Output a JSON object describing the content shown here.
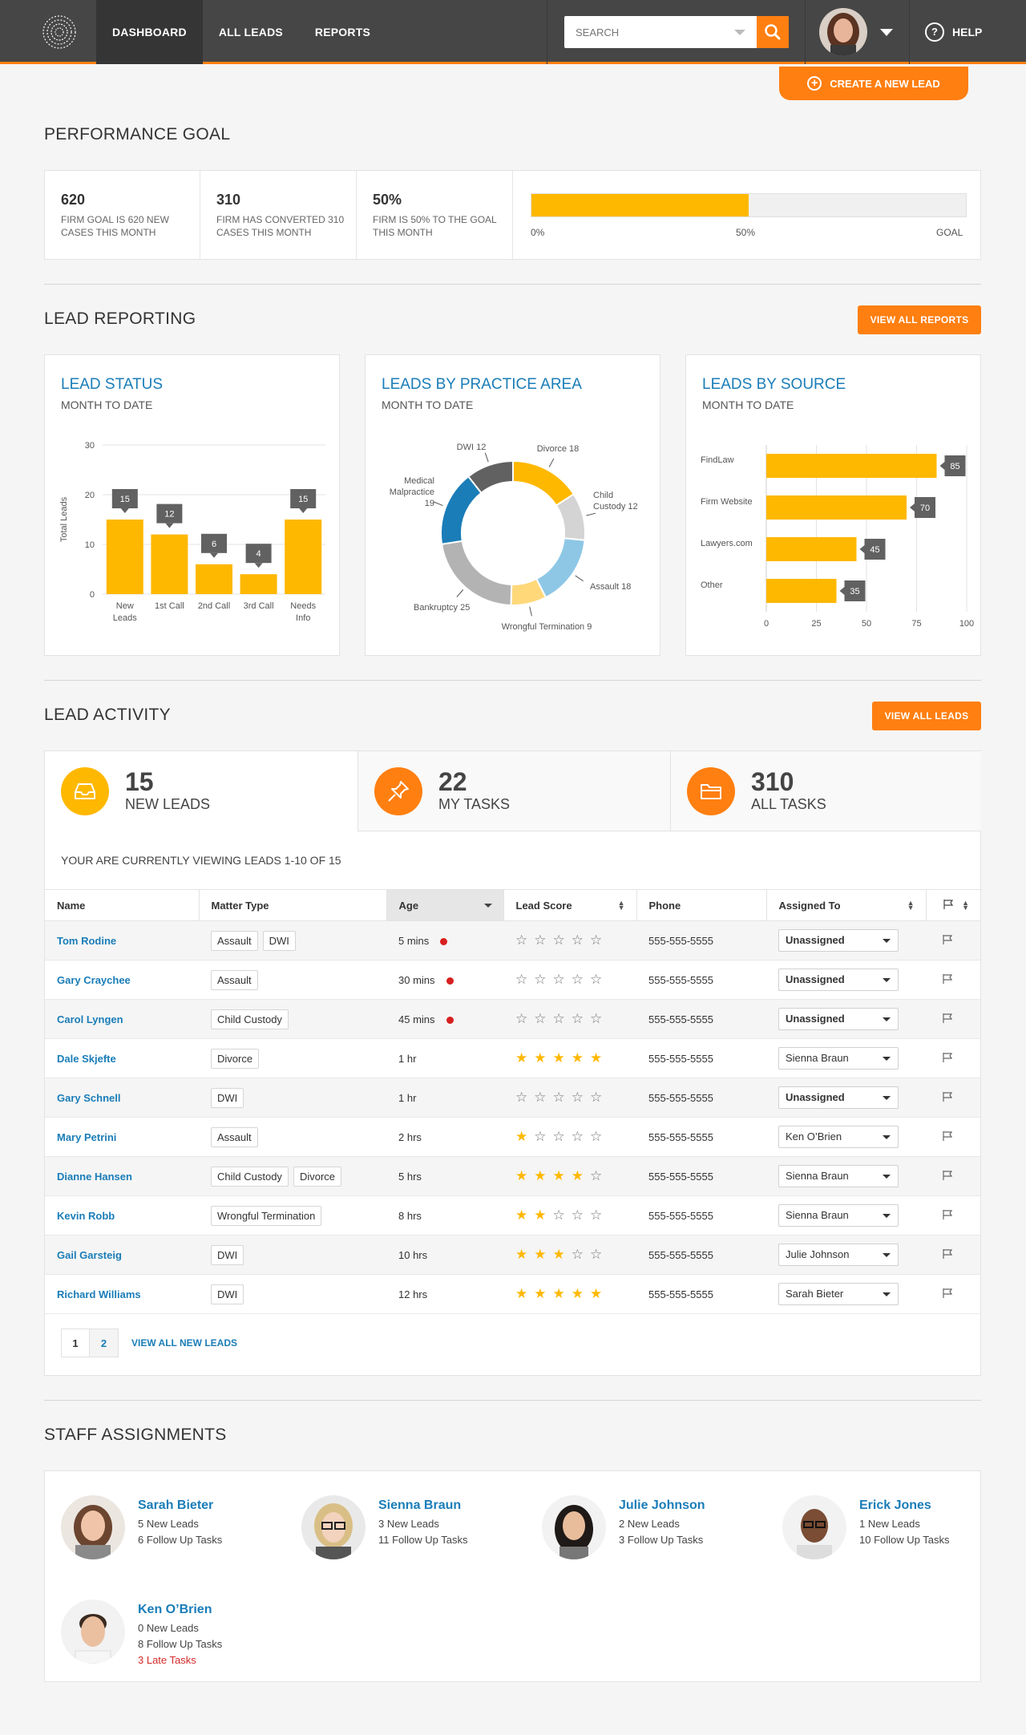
{
  "nav": {
    "items": [
      "DASHBOARD",
      "ALL LEADS",
      "REPORTS"
    ],
    "search_placeholder": "SEARCH",
    "help": "HELP",
    "create_lead": "CREATE A NEW LEAD"
  },
  "performance": {
    "title": "PERFORMANCE GOAL",
    "cells": [
      {
        "num": "620",
        "text": "FIRM GOAL IS 620 NEW CASES THIS MONTH"
      },
      {
        "num": "310",
        "text": "FIRM HAS CONVERTED 310 CASES THIS MONTH"
      },
      {
        "num": "50%",
        "text": "FIRM IS 50% TO THE GOAL THIS MONTH"
      }
    ],
    "progress": 0.5,
    "bar_labels": [
      "0%",
      "50%",
      "GOAL"
    ]
  },
  "reporting": {
    "title": "LEAD REPORTING",
    "view_all": "VIEW ALL REPORTS",
    "subtitle": "MONTH TO DATE"
  },
  "chart_data": [
    {
      "type": "bar",
      "title": "LEAD STATUS",
      "ylabel": "Total Leads",
      "categories": [
        "New Leads",
        "1st Call",
        "2nd Call",
        "3rd Call",
        "Needs Info"
      ],
      "category_lines": [
        [
          "New",
          "Leads"
        ],
        [
          "1st Call"
        ],
        [
          "2nd Call"
        ],
        [
          "3rd Call"
        ],
        [
          "Needs",
          "Info"
        ]
      ],
      "values": [
        15,
        12,
        6,
        4,
        15
      ],
      "yticks": [
        0,
        10,
        20,
        30
      ],
      "ylim": [
        0,
        30
      ]
    },
    {
      "type": "pie",
      "title": "LEADS BY PRACTICE AREA",
      "slices": [
        {
          "label": "Divorce 18",
          "value": 18,
          "color": "#ffb800"
        },
        {
          "label": "Child Custody 12",
          "value": 12,
          "color": "#d4d4d4"
        },
        {
          "label": "Assault 18",
          "value": 18,
          "color": "#8ec7e6"
        },
        {
          "label": "Wrongful Termination 9",
          "value": 9,
          "color": "#ffd87a"
        },
        {
          "label": "Bankruptcy 25",
          "value": 25,
          "color": "#b3b3b3"
        },
        {
          "label": "Medical Malpractice 19",
          "value": 19,
          "color": "#1a7db8"
        },
        {
          "label": "DWI 12",
          "value": 12,
          "color": "#616161"
        }
      ]
    },
    {
      "type": "bar",
      "orientation": "horizontal",
      "title": "LEADS BY SOURCE",
      "categories": [
        "FindLaw",
        "Firm Website",
        "Lawyers.com",
        "Other"
      ],
      "values": [
        85,
        70,
        45,
        35
      ],
      "xticks": [
        0,
        25,
        50,
        75,
        100
      ],
      "xlim": [
        0,
        100
      ]
    }
  ],
  "activity": {
    "title": "LEAD ACTIVITY",
    "view_all": "VIEW ALL LEADS",
    "stats": [
      {
        "num": "15",
        "label": "NEW LEADS",
        "icon": "inbox-icon",
        "color": "#ffb800"
      },
      {
        "num": "22",
        "label": "MY TASKS",
        "icon": "pushpin-icon",
        "color": "#ff7f11"
      },
      {
        "num": "310",
        "label": "ALL TASKS",
        "icon": "folder-icon",
        "color": "#ff7f11"
      }
    ],
    "viewing": "YOUR ARE CURRENTLY VIEWING LEADS 1-10 OF 15",
    "columns": [
      "Name",
      "Matter Type",
      "Age",
      "Lead Score",
      "Phone",
      "Assigned To"
    ],
    "rows": [
      {
        "name": "Tom Rodine",
        "types": [
          "Assault",
          "DWI"
        ],
        "age": "5 mins",
        "urgent": true,
        "score": 0,
        "phone": "555-555-5555",
        "assigned": "Unassigned"
      },
      {
        "name": "Gary Craychee",
        "types": [
          "Assault"
        ],
        "age": "30 mins",
        "urgent": true,
        "score": 0,
        "phone": "555-555-5555",
        "assigned": "Unassigned"
      },
      {
        "name": "Carol Lyngen",
        "types": [
          "Child Custody"
        ],
        "age": "45 mins",
        "urgent": true,
        "score": 0,
        "phone": "555-555-5555",
        "assigned": "Unassigned"
      },
      {
        "name": "Dale Skjefte",
        "types": [
          "Divorce"
        ],
        "age": "1 hr",
        "urgent": false,
        "score": 5,
        "phone": "555-555-5555",
        "assigned": "Sienna Braun"
      },
      {
        "name": "Gary Schnell",
        "types": [
          "DWI"
        ],
        "age": "1 hr",
        "urgent": false,
        "score": 0,
        "phone": "555-555-5555",
        "assigned": "Unassigned"
      },
      {
        "name": "Mary Petrini",
        "types": [
          "Assault"
        ],
        "age": "2 hrs",
        "urgent": false,
        "score": 1,
        "phone": "555-555-5555",
        "assigned": "Ken O’Brien"
      },
      {
        "name": "Dianne Hansen",
        "types": [
          "Child Custody",
          "Divorce"
        ],
        "age": "5 hrs",
        "urgent": false,
        "score": 4,
        "phone": "555-555-5555",
        "assigned": "Sienna Braun"
      },
      {
        "name": "Kevin Robb",
        "types": [
          "Wrongful Termination"
        ],
        "age": "8 hrs",
        "urgent": false,
        "score": 2,
        "phone": "555-555-5555",
        "assigned": "Sienna Braun"
      },
      {
        "name": "Gail Garsteig",
        "types": [
          "DWI"
        ],
        "age": "10 hrs",
        "urgent": false,
        "score": 3,
        "phone": "555-555-5555",
        "assigned": "Julie Johnson"
      },
      {
        "name": "Richard Williams",
        "types": [
          "DWI"
        ],
        "age": "12 hrs",
        "urgent": false,
        "score": 5,
        "phone": "555-555-5555",
        "assigned": "Sarah Bieter"
      }
    ],
    "pages": [
      "1",
      "2"
    ],
    "view_all_new": "VIEW ALL NEW LEADS"
  },
  "staff": {
    "title": "STAFF ASSIGNMENTS",
    "members": [
      {
        "name": "Sarah Bieter",
        "lines": [
          "5 New Leads",
          "6 Follow Up Tasks"
        ],
        "late": ""
      },
      {
        "name": "Sienna Braun",
        "lines": [
          "3 New Leads",
          "11 Follow Up Tasks"
        ],
        "late": ""
      },
      {
        "name": "Julie Johnson",
        "lines": [
          "2 New Leads",
          "3 Follow Up Tasks"
        ],
        "late": ""
      },
      {
        "name": "Erick Jones",
        "lines": [
          "1 New Leads",
          "10 Follow Up Tasks"
        ],
        "late": ""
      },
      {
        "name": "Ken O’Brien",
        "lines": [
          "0 New Leads",
          "8 Follow Up Tasks"
        ],
        "late": "3 Late Tasks"
      }
    ]
  }
}
